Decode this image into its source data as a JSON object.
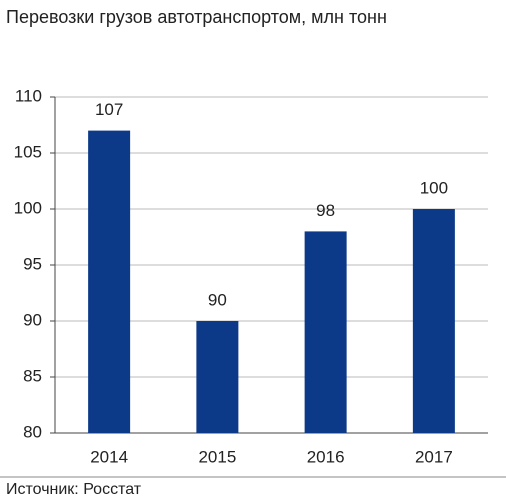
{
  "chart_data": {
    "type": "bar",
    "title": "Перевозки грузов автотранспортом, млн тонн",
    "categories": [
      "2014",
      "2015",
      "2016",
      "2017"
    ],
    "values": [
      107,
      90,
      98,
      100
    ],
    "color": "#0d3a88",
    "ylim": [
      80,
      110
    ],
    "yticks": [
      80,
      85,
      90,
      95,
      100,
      105,
      110
    ],
    "grid": true,
    "source": "Источник: Росстат"
  }
}
